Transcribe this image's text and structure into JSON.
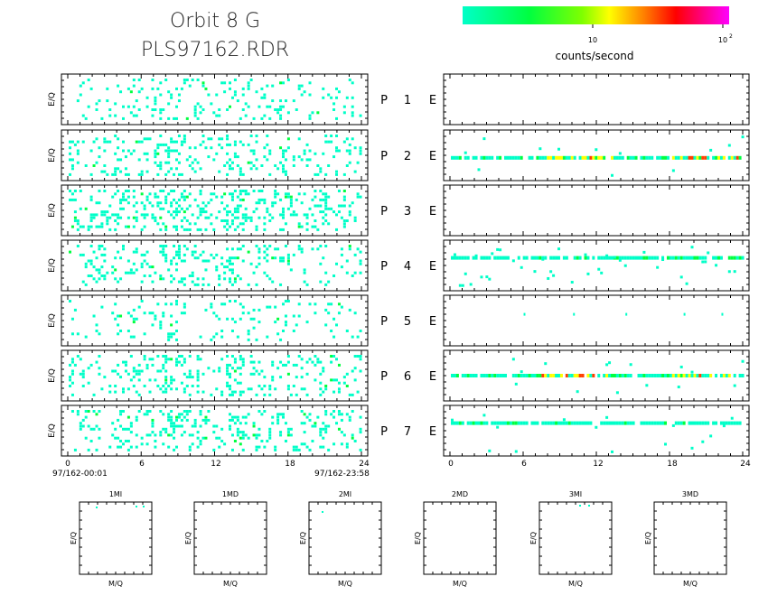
{
  "header": {
    "title_line1": "Orbit 8 G",
    "title_line2": "PLS97162.RDR"
  },
  "colorbar": {
    "label": "counts/second",
    "tick_10": "10",
    "tick_100": "10",
    "tick_100_exp": "2",
    "colors": [
      "#00ffbf",
      "#00ff6a",
      "#00ff00",
      "#80ff00",
      "#ffff00",
      "#ff8000",
      "#ff0000",
      "#ff0080",
      "#ff00ff"
    ]
  },
  "chart_data": {
    "type": "heatmap",
    "description_axes": {
      "ylabel": "E/Q",
      "left_xticks": [
        "0",
        "6",
        "12",
        "18",
        "24"
      ],
      "right_xticks": [
        "0",
        "6",
        "12",
        "18",
        "24"
      ],
      "time_start": "97/162-00:01",
      "time_end": "97/162-23:58",
      "xlim": [
        0,
        24
      ]
    },
    "row_labels": [
      {
        "p": "P",
        "num": "1",
        "e": "E"
      },
      {
        "p": "P",
        "num": "2",
        "e": "E"
      },
      {
        "p": "P",
        "num": "3",
        "e": "E"
      },
      {
        "p": "P",
        "num": "4",
        "e": "E"
      },
      {
        "p": "P",
        "num": "5",
        "e": "E"
      },
      {
        "p": "P",
        "num": "6",
        "e": "E"
      },
      {
        "p": "P",
        "num": "7",
        "e": "E"
      }
    ],
    "left_density": [
      0.1,
      0.14,
      0.2,
      0.14,
      0.07,
      0.15,
      0.16
    ],
    "right_band": [
      {
        "present": false
      },
      {
        "present": true,
        "y": 0.55,
        "hot": true
      },
      {
        "present": false
      },
      {
        "present": true,
        "y": 0.35,
        "hot": false,
        "scatter": true
      },
      {
        "present": false,
        "sparse": true
      },
      {
        "present": true,
        "y": 0.5,
        "hot": true
      },
      {
        "present": true,
        "y": 0.35,
        "hot": false
      }
    ],
    "bottom_panels": [
      {
        "title": "1MI",
        "ylabel": "E/Q",
        "xlabel": "M/Q"
      },
      {
        "title": "1MD",
        "ylabel": "E/Q",
        "xlabel": "M/Q"
      },
      {
        "title": "2MI",
        "ylabel": "E/Q",
        "xlabel": "M/Q"
      },
      {
        "title": "2MD",
        "ylabel": "E/Q",
        "xlabel": "M/Q"
      },
      {
        "title": "3MI",
        "ylabel": "E/Q",
        "xlabel": "M/Q"
      },
      {
        "title": "3MD",
        "ylabel": "E/Q",
        "xlabel": "M/Q"
      }
    ]
  }
}
